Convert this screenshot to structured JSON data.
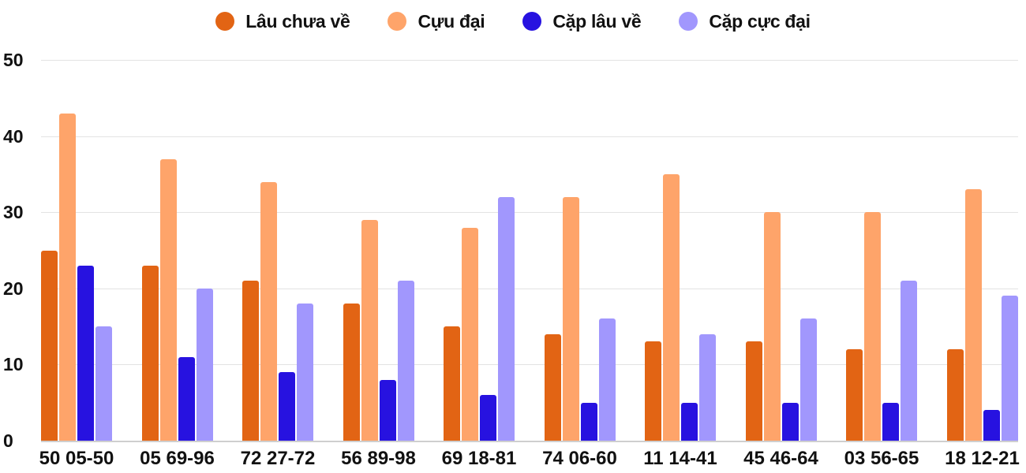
{
  "chart_data": {
    "type": "bar",
    "title": "",
    "xlabel": "",
    "ylabel": "",
    "ylim": [
      0,
      50
    ],
    "yticks": [
      0,
      10,
      20,
      30,
      40,
      50
    ],
    "grid": true,
    "legend_position": "top",
    "categories": [
      "50 05-50",
      "05 69-96",
      "72 27-72",
      "56 89-98",
      "69 18-81",
      "74 06-60",
      "11 14-41",
      "45 46-64",
      "03 56-65",
      "18 12-21"
    ],
    "series": [
      {
        "name": "Lâu chưa về",
        "color": "#e26414",
        "values": [
          25,
          23,
          21,
          18,
          15,
          14,
          13,
          13,
          12,
          12
        ]
      },
      {
        "name": "Cựu đại",
        "color": "#fea46a",
        "values": [
          43,
          37,
          34,
          29,
          28,
          32,
          35,
          30,
          30,
          33
        ]
      },
      {
        "name": "Cặp lâu về",
        "color": "#2712e0",
        "values": [
          23,
          11,
          9,
          8,
          6,
          5,
          5,
          5,
          5,
          4
        ]
      },
      {
        "name": "Cặp cực đại",
        "color": "#a197fd",
        "values": [
          15,
          20,
          18,
          21,
          32,
          16,
          14,
          16,
          21,
          19
        ]
      }
    ]
  }
}
